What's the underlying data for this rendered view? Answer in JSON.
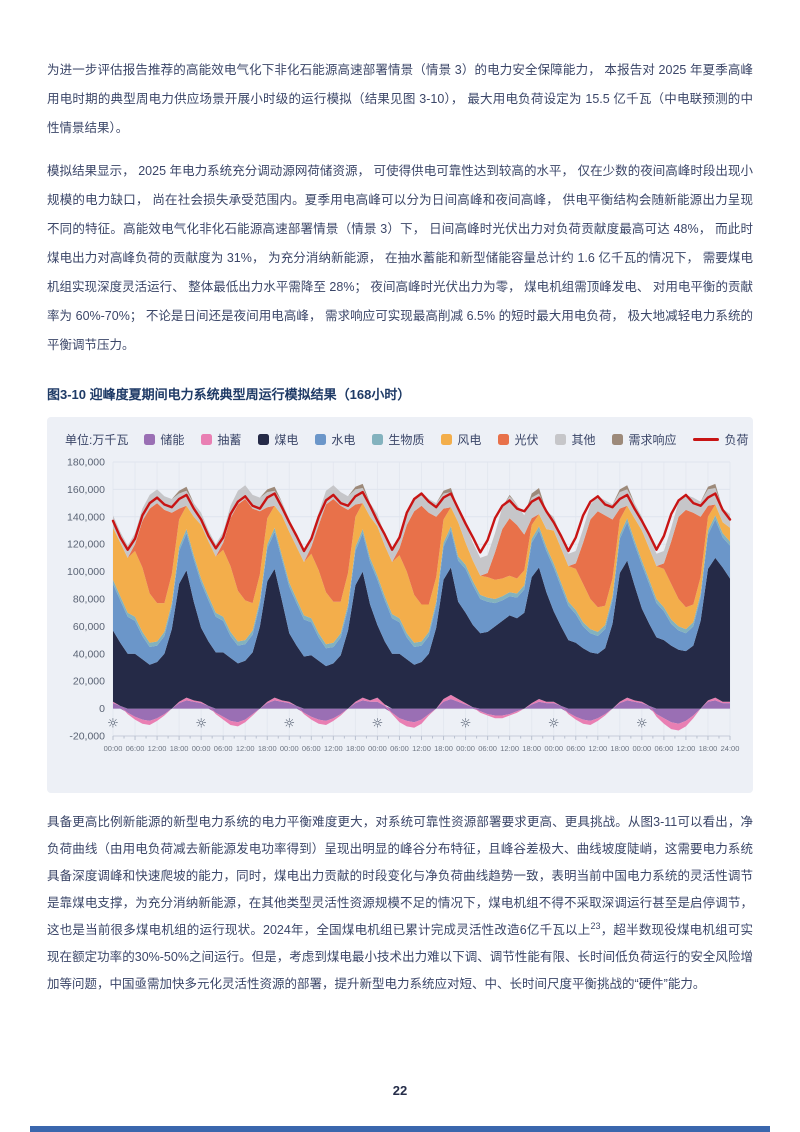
{
  "paragraphs": {
    "p1": "为进一步评估报告推荐的高能效电气化下非化石能源高速部署情景（情景 3）的电力安全保障能力， 本报告对 2025 年夏季高峰用电时期的典型周电力供应场景开展小时级的运行模拟（结果见图 3-10）， 最大用电负荷设定为 15.5 亿千瓦（中电联预测的中性情景结果）。",
    "p2": "模拟结果显示， 2025 年电力系统充分调动源网荷储资源， 可使得供电可靠性达到较高的水平， 仅在少数的夜间高峰时段出现小规模的电力缺口， 尚在社会损失承受范围内。夏季用电高峰可以分为日间高峰和夜间高峰， 供电平衡结构会随新能源出力呈现不同的特征。高能效电气化非化石能源高速部署情景（情景 3）下， 日间高峰时光伏出力对负荷贡献度最高可达 48%， 而此时煤电出力对高峰负荷的贡献度为 31%， 为充分消纳新能源， 在抽水蓄能和新型储能容量总计约 1.6 亿千瓦的情况下， 需要煤电机组实现深度灵活运行、 整体最低出力水平需降至 28%； 夜间高峰时光伏出力为零， 煤电机组需顶峰发电、 对用电平衡的贡献率为 60%-70%； 不论是日间还是夜间用电高峰， 需求响应可实现最高削减 6.5% 的短时最大用电负荷， 极大地减轻电力系统的平衡调节压力。",
    "p3_part1": "具备更高比例新能源的新型电力系统的电力平衡难度更大，对系统可靠性资源部署要求更高、更具挑战。从图3-11可以看出，净负荷曲线（由用电负荷减去新能源发电功率得到）呈现出明显的峰谷分布特征，且峰谷差极大、曲线坡度陡峭，这需要电力系统具备深度调峰和快速爬坡的能力，同时，煤电出力贡献的时段变化与净负荷曲线趋势一致，表明当前中国电力系统的灵活性调节是靠煤电支撑，为充分消纳新能源，在其他类型灵活性资源规模不足的情况下，煤电机组不得不采取深调运行甚至是启停调节，这也是当前很多煤电机组的运行现状。2024年，全国煤电机组已累计完成灵活性改造6亿千瓦以上",
    "p3_sup": "23",
    "p3_part2": "，超半数现役煤电机组可实现在额定功率的30%-50%之间运行。但是，考虑到煤电最小技术出力难以下调、调节性能有限、长时间低负荷运行的安全风险增加等问题，中国亟需加快多元化灵活性资源的部署，提升新型电力系统应对短、中、长时间尺度平衡挑战的“硬件”能力。"
  },
  "figure": {
    "title": "图3-10 迎峰度夏期间电力系统典型周运行模拟结果（168小时）",
    "unit_label": "单位:万千瓦",
    "legend": [
      {
        "label": "储能",
        "color": "#9a6fb4",
        "type": "swatch"
      },
      {
        "label": "抽蓄",
        "color": "#e97fb3",
        "type": "swatch"
      },
      {
        "label": "煤电",
        "color": "#252a47",
        "type": "swatch"
      },
      {
        "label": "水电",
        "color": "#6b96c9",
        "type": "swatch"
      },
      {
        "label": "生物质",
        "color": "#83b2be",
        "type": "swatch"
      },
      {
        "label": "风电",
        "color": "#f3ae4b",
        "type": "swatch"
      },
      {
        "label": "光伏",
        "color": "#e8714a",
        "type": "swatch"
      },
      {
        "label": "其他",
        "color": "#c6c6c9",
        "type": "swatch"
      },
      {
        "label": "需求响应",
        "color": "#9d8a7a",
        "type": "swatch"
      },
      {
        "label": "负荷",
        "color": "#c81414",
        "type": "line"
      }
    ]
  },
  "chart_data": {
    "type": "area",
    "stacked": true,
    "title": "迎峰度夏期间电力系统典型周运行模拟结果（168小时）",
    "unit": "万千瓦",
    "background": "#edf0f6",
    "ylim": [
      -20000,
      180000
    ],
    "yticks": [
      {
        "value": 180000,
        "label": "180,000"
      },
      {
        "value": 160000,
        "label": "160,000"
      },
      {
        "value": 140000,
        "label": "140,000"
      },
      {
        "value": 120000,
        "label": "120,000"
      },
      {
        "value": 100000,
        "label": "100,000"
      },
      {
        "value": 80000,
        "label": "80,000"
      },
      {
        "value": 60000,
        "label": "60,000"
      },
      {
        "value": 40000,
        "label": "40,000"
      },
      {
        "value": 20000,
        "label": "20,000"
      },
      {
        "value": 0,
        "label": "0"
      },
      {
        "value": -20000,
        "label": "-20,000"
      }
    ],
    "xtick_labels": [
      "00:00",
      "06:00",
      "12:00",
      "18:00",
      "00:00",
      "06:00",
      "12:00",
      "18:00",
      "00:00",
      "06:00",
      "12:00",
      "18:00",
      "00:00",
      "06:00",
      "12:00",
      "18:00",
      "00:00",
      "06:00",
      "12:00",
      "18:00",
      "00:00",
      "06:00",
      "12:00",
      "18:00",
      "00:00",
      "06:00",
      "12:00",
      "18:00",
      "24:00"
    ],
    "sun_marker_hours": [
      0,
      24,
      48,
      72,
      96,
      120,
      144
    ],
    "x_hours": [
      0,
      2,
      4,
      6,
      8,
      10,
      12,
      14,
      16,
      18,
      20,
      22,
      24,
      26,
      28,
      30,
      32,
      34,
      36,
      38,
      40,
      42,
      44,
      46,
      48,
      50,
      52,
      54,
      56,
      58,
      60,
      62,
      64,
      66,
      68,
      70,
      72,
      74,
      76,
      78,
      80,
      82,
      84,
      86,
      88,
      90,
      92,
      94,
      96,
      98,
      100,
      102,
      104,
      106,
      108,
      110,
      112,
      114,
      116,
      118,
      120,
      122,
      124,
      126,
      128,
      130,
      132,
      134,
      136,
      138,
      140,
      142,
      144,
      146,
      148,
      150,
      152,
      154,
      156,
      158,
      160,
      162,
      164,
      166,
      168
    ],
    "series": [
      {
        "name": "储能",
        "color": "#9a6fb4",
        "values": [
          4000,
          2000,
          -3000,
          -6000,
          -8000,
          -9000,
          -7000,
          -4000,
          0,
          4000,
          6000,
          5000,
          4000,
          2000,
          -3000,
          -6000,
          -9000,
          -10000,
          -8000,
          -4000,
          0,
          4000,
          6000,
          5000,
          4000,
          2000,
          -3000,
          -6000,
          -8000,
          -9000,
          -7000,
          -4000,
          0,
          4000,
          6000,
          5000,
          5000,
          2000,
          -3000,
          -7000,
          -9000,
          -10000,
          -8000,
          -4000,
          0,
          5000,
          7000,
          5000,
          3000,
          1000,
          -2000,
          -4000,
          -5000,
          -5000,
          -4000,
          -2000,
          0,
          3000,
          5000,
          4000,
          4000,
          2000,
          -3000,
          -6000,
          -8000,
          -9000,
          -7000,
          -4000,
          0,
          4000,
          6000,
          5000,
          4000,
          2000,
          -4000,
          -7000,
          -10000,
          -11000,
          -9000,
          -5000,
          0,
          5000,
          6000,
          4000,
          4000
        ]
      },
      {
        "name": "抽蓄",
        "color": "#e97fb3",
        "values": [
          1000,
          0,
          -1000,
          -2000,
          -3000,
          -3000,
          -2000,
          -1000,
          0,
          1000,
          2000,
          1000,
          1000,
          0,
          -1000,
          -2000,
          -3000,
          -3000,
          -2000,
          -1000,
          0,
          1000,
          2000,
          1000,
          1000,
          0,
          -1000,
          -2000,
          -3000,
          -3000,
          -2000,
          -1000,
          0,
          1000,
          2000,
          1000,
          3000,
          1000,
          -1000,
          -3000,
          -4000,
          -4000,
          -3000,
          -1000,
          0,
          2000,
          3000,
          2000,
          1000,
          0,
          -1000,
          -1000,
          -2000,
          -2000,
          -1000,
          -1000,
          0,
          1000,
          2000,
          1000,
          1000,
          0,
          -1000,
          -2000,
          -3000,
          -3000,
          -2000,
          -1000,
          0,
          1000,
          2000,
          1000,
          1000,
          0,
          -2000,
          -4000,
          -5000,
          -5000,
          -4000,
          -2000,
          0,
          1000,
          2000,
          1000,
          1000
        ]
      },
      {
        "name": "煤电",
        "color": "#252a47",
        "values": [
          52000,
          46000,
          40000,
          40000,
          36000,
          32000,
          34000,
          40000,
          58000,
          86000,
          93000,
          72000,
          54000,
          47000,
          41000,
          41000,
          37000,
          33000,
          35000,
          41000,
          60000,
          88000,
          94000,
          73000,
          50000,
          44000,
          38000,
          39000,
          35000,
          31000,
          33000,
          39000,
          57000,
          85000,
          92000,
          70000,
          53000,
          46000,
          40000,
          40000,
          36000,
          32000,
          34000,
          40000,
          59000,
          87000,
          93000,
          71000,
          66000,
          60000,
          55000,
          56000,
          60000,
          64000,
          68000,
          66000,
          70000,
          92000,
          96000,
          80000,
          66000,
          58000,
          50000,
          48000,
          44000,
          41000,
          40000,
          44000,
          62000,
          94000,
          100000,
          84000,
          68000,
          60000,
          52000,
          50000,
          46000,
          43000,
          42000,
          46000,
          64000,
          96000,
          102000,
          98000,
          90000
        ]
      },
      {
        "name": "水电",
        "color": "#6b96c9",
        "values": [
          34000,
          31000,
          27000,
          24000,
          17000,
          13000,
          12000,
          13000,
          16000,
          24000,
          27000,
          31000,
          33000,
          30000,
          26000,
          23000,
          16000,
          13000,
          12000,
          13000,
          16000,
          24000,
          27000,
          30000,
          34000,
          31000,
          27000,
          24000,
          17000,
          13000,
          12000,
          13000,
          16000,
          25000,
          28000,
          31000,
          33000,
          30000,
          26000,
          23000,
          16000,
          13000,
          12000,
          13000,
          16000,
          24000,
          27000,
          30000,
          32000,
          29000,
          25000,
          22000,
          17000,
          15000,
          14000,
          15000,
          17000,
          25000,
          27000,
          30000,
          32000,
          29000,
          25000,
          21000,
          16000,
          14000,
          13000,
          14000,
          17000,
          25000,
          28000,
          30000,
          32000,
          29000,
          25000,
          21000,
          16000,
          14000,
          13000,
          14000,
          17000,
          25000,
          28000,
          22000,
          24000
        ]
      },
      {
        "name": "生物质",
        "color": "#83b2be",
        "values": [
          3000,
          3000,
          3000,
          3000,
          3000,
          3000,
          3000,
          3000,
          3000,
          3000,
          3000,
          3000,
          3000,
          3000,
          3000,
          3000,
          3000,
          3000,
          3000,
          3000,
          3000,
          3000,
          3000,
          3000,
          3000,
          3000,
          3000,
          3000,
          3000,
          3000,
          3000,
          3000,
          3000,
          3000,
          3000,
          3000,
          3000,
          3000,
          3000,
          3000,
          3000,
          3000,
          3000,
          3000,
          3000,
          3000,
          3000,
          3000,
          3000,
          3000,
          3000,
          3000,
          3000,
          3000,
          3000,
          3000,
          3000,
          3000,
          3000,
          3000,
          3000,
          3000,
          3000,
          3000,
          3000,
          3000,
          3000,
          3000,
          3000,
          3000,
          3000,
          3000,
          3000,
          3000,
          3000,
          3000,
          3000,
          3000,
          3000,
          3000,
          3000,
          3000,
          3000,
          3000,
          3000
        ]
      },
      {
        "name": "风电",
        "color": "#f3ae4b",
        "values": [
          38000,
          39000,
          40000,
          48000,
          47000,
          36000,
          28000,
          21000,
          21000,
          20000,
          17000,
          28000,
          39000,
          40000,
          41000,
          49000,
          48000,
          37000,
          29000,
          20000,
          19000,
          19000,
          16000,
          29000,
          37000,
          38000,
          39000,
          47000,
          46000,
          38000,
          30000,
          23000,
          23000,
          22000,
          19000,
          30000,
          36000,
          37000,
          38000,
          46000,
          45000,
          35000,
          27000,
          20000,
          18000,
          17000,
          14000,
          25000,
          16000,
          15000,
          14000,
          15000,
          14000,
          13000,
          12000,
          11000,
          11000,
          10000,
          9000,
          13000,
          24000,
          25000,
          26000,
          30000,
          28000,
          22000,
          18000,
          14000,
          13000,
          11000,
          9000,
          16000,
          22000,
          23000,
          24000,
          28000,
          26000,
          20000,
          16000,
          13000,
          12000,
          10000,
          8000,
          8000,
          10000
        ]
      },
      {
        "name": "光伏",
        "color": "#e8714a",
        "values": [
          0,
          0,
          0,
          5000,
          34000,
          62000,
          73000,
          68000,
          45000,
          8000,
          0,
          0,
          0,
          0,
          0,
          5000,
          35000,
          63000,
          74000,
          69000,
          46000,
          8000,
          0,
          0,
          0,
          0,
          0,
          5000,
          33000,
          64000,
          75000,
          70000,
          46000,
          9000,
          0,
          0,
          0,
          0,
          0,
          5000,
          34000,
          61000,
          72000,
          67000,
          44000,
          8000,
          0,
          0,
          0,
          0,
          0,
          3000,
          20000,
          36000,
          42000,
          39000,
          26000,
          5000,
          0,
          0,
          0,
          0,
          0,
          4000,
          30000,
          58000,
          70000,
          66000,
          43000,
          8000,
          0,
          0,
          0,
          0,
          0,
          4000,
          31000,
          60000,
          71000,
          67000,
          44000,
          8000,
          0,
          0,
          0
        ]
      },
      {
        "name": "其他",
        "color": "#c6c6c9",
        "values": [
          9000,
          8000,
          9000,
          8000,
          9000,
          10000,
          10000,
          10000,
          10000,
          11000,
          11000,
          10000,
          9000,
          8000,
          9000,
          8000,
          9000,
          10000,
          10000,
          10000,
          10000,
          11000,
          11000,
          10000,
          9000,
          8000,
          9000,
          8000,
          9000,
          10000,
          10000,
          10000,
          10000,
          11000,
          11000,
          10000,
          9000,
          8000,
          9000,
          8000,
          9000,
          10000,
          10000,
          10000,
          10000,
          11000,
          11000,
          10000,
          14000,
          13000,
          13000,
          13000,
          14000,
          16000,
          16000,
          15000,
          14000,
          15000,
          15000,
          13000,
          10000,
          9000,
          9000,
          9000,
          10000,
          11000,
          11000,
          11000,
          11000,
          12000,
          12000,
          11000,
          10000,
          9000,
          9000,
          9000,
          10000,
          11000,
          11000,
          11000,
          11000,
          12000,
          12000,
          10000,
          10000
        ]
      },
      {
        "name": "需求响应",
        "color": "#9d8a7a",
        "values": [
          0,
          0,
          0,
          0,
          0,
          0,
          0,
          0,
          0,
          2000,
          3000,
          0,
          0,
          0,
          0,
          0,
          0,
          0,
          0,
          0,
          0,
          2000,
          3000,
          0,
          0,
          0,
          0,
          0,
          0,
          0,
          0,
          0,
          0,
          2000,
          3000,
          0,
          0,
          0,
          0,
          0,
          0,
          0,
          0,
          0,
          0,
          2000,
          3000,
          0,
          0,
          0,
          0,
          0,
          0,
          0,
          1000,
          0,
          0,
          3000,
          4000,
          0,
          0,
          0,
          0,
          0,
          0,
          0,
          0,
          0,
          0,
          2000,
          3000,
          0,
          0,
          0,
          0,
          0,
          0,
          0,
          0,
          0,
          0,
          2000,
          3000,
          0,
          0
        ]
      }
    ],
    "load_series": {
      "name": "负荷",
      "color": "#c81414",
      "values": [
        137000,
        125000,
        116000,
        124000,
        141000,
        150000,
        154000,
        149000,
        147000,
        153000,
        156000,
        146000,
        138000,
        126000,
        117000,
        125000,
        142000,
        151000,
        155000,
        148000,
        146000,
        154000,
        157000,
        147000,
        136000,
        126000,
        115000,
        124000,
        140000,
        152000,
        156000,
        150000,
        148000,
        155000,
        158000,
        148000,
        137000,
        127000,
        116000,
        125000,
        143000,
        153000,
        157000,
        151000,
        147000,
        154000,
        157000,
        146000,
        135000,
        125000,
        114000,
        123000,
        139000,
        148000,
        152000,
        146000,
        144000,
        151000,
        154000,
        144000,
        136000,
        126000,
        115000,
        125000,
        141000,
        151000,
        155000,
        149000,
        147000,
        153000,
        156000,
        146000,
        137000,
        127000,
        116000,
        126000,
        142000,
        152000,
        156000,
        150000,
        148000,
        154000,
        157000,
        145000,
        138000
      ]
    },
    "legend_position": "top",
    "grid": true
  },
  "footer": {
    "page_number": "22"
  }
}
